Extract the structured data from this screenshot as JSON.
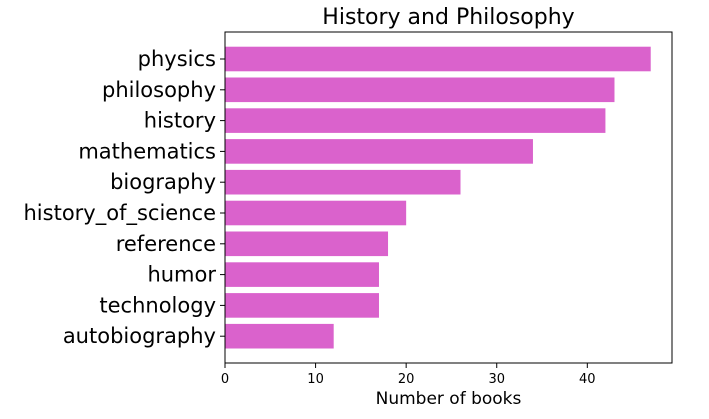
{
  "chart_data": {
    "type": "bar",
    "orientation": "horizontal",
    "title": "History and Philosophy",
    "xlabel": "Number of books",
    "ylabel": "",
    "categories": [
      "physics",
      "philosophy",
      "history",
      "mathematics",
      "biography",
      "history_of_science",
      "reference",
      "humor",
      "technology",
      "autobiography"
    ],
    "values": [
      47,
      43,
      42,
      34,
      26,
      20,
      18,
      17,
      17,
      12
    ],
    "xlim": [
      0,
      49.35
    ],
    "xticks": [
      "0",
      "10",
      "20",
      "30",
      "40"
    ],
    "grid": false,
    "legend": "none",
    "bar_color": "#da62cc"
  }
}
